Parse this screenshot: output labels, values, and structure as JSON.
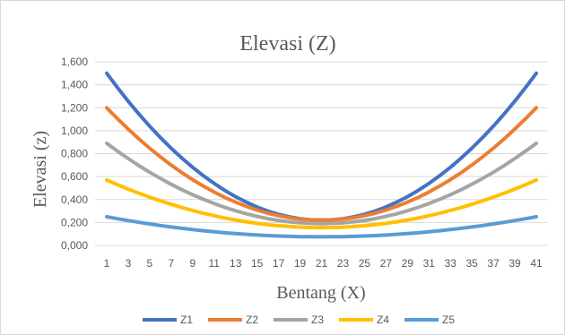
{
  "chart_data": {
    "type": "line",
    "title": "Elevasi (Z)",
    "xlabel": "Bentang (X)",
    "ylabel": "Elevasi (z)",
    "x": [
      1,
      2,
      3,
      4,
      5,
      6,
      7,
      8,
      9,
      10,
      11,
      12,
      13,
      14,
      15,
      16,
      17,
      18,
      19,
      20,
      21,
      22,
      23,
      24,
      25,
      26,
      27,
      28,
      29,
      30,
      31,
      32,
      33,
      34,
      35,
      36,
      37,
      38,
      39,
      40,
      41
    ],
    "x_tick_labels": [
      "1",
      "3",
      "5",
      "7",
      "9",
      "11",
      "13",
      "15",
      "17",
      "19",
      "21",
      "23",
      "25",
      "27",
      "29",
      "31",
      "33",
      "35",
      "37",
      "39",
      "41"
    ],
    "ylim": [
      0,
      1.6
    ],
    "y_tick_values": [
      0,
      0.2,
      0.4,
      0.6,
      0.8,
      1.0,
      1.2,
      1.4,
      1.6
    ],
    "y_tick_labels": [
      "0,000",
      "0,200",
      "0,400",
      "0,600",
      "0,800",
      "1,000",
      "1,200",
      "1,400",
      "1,600"
    ],
    "grid": true,
    "legend_position": "bottom",
    "series": [
      {
        "name": "Z1",
        "color": "#4472c4",
        "min": 0.22,
        "max": 1.5
      },
      {
        "name": "Z2",
        "color": "#ed7d31",
        "min": 0.22,
        "max": 1.2
      },
      {
        "name": "Z3",
        "color": "#a5a5a5",
        "min": 0.19,
        "max": 0.89
      },
      {
        "name": "Z4",
        "color": "#ffc000",
        "min": 0.155,
        "max": 0.57
      },
      {
        "name": "Z5",
        "color": "#5b9bd5",
        "min": 0.075,
        "max": 0.25
      }
    ]
  }
}
